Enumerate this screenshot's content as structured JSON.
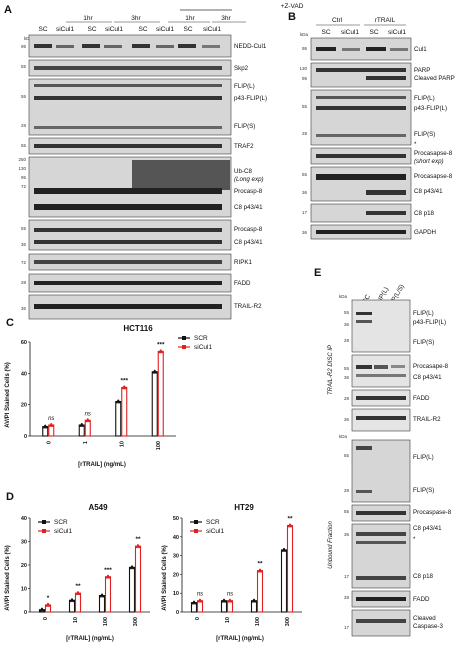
{
  "panel_labels": {
    "a": "A",
    "b": "B",
    "c": "C",
    "d": "D",
    "e": "E"
  },
  "unit": "kDa",
  "panelA": {
    "zvad": "+Z-VAD",
    "time_1hr": "1hr",
    "time_3hr": "3hr",
    "sc": "SC",
    "sicul1": "siCul1",
    "rows": [
      {
        "label": "NEDD-Cul1",
        "mw": "95"
      },
      {
        "label": "Skp2",
        "mw": "55"
      },
      {
        "label": "FLIP(L)",
        "mw": ""
      },
      {
        "label": "p43-FLIP(L)",
        "mw": "55"
      },
      {
        "label": "FLIP(S)",
        "mw": "28"
      },
      {
        "label": "TRAF2",
        "mw": "55"
      },
      {
        "label": "Ub-C8",
        "mw": "250"
      },
      {
        "label": "(Long exp)",
        "mw": "130"
      },
      {
        "label": "Procasp-8",
        "mw": "95"
      },
      {
        "label": "C8 p43/41",
        "mw": "72"
      },
      {
        "label": "Procasp-8",
        "mw": "55"
      },
      {
        "label": "C8 p43/41",
        "mw": "36"
      },
      {
        "label": "RIPK1",
        "mw": "72"
      },
      {
        "label": "FADD",
        "mw": "28"
      },
      {
        "label": "TRAIL-R2",
        "mw": "36"
      }
    ]
  },
  "panelB": {
    "ctrl": "Ctrl",
    "rtrail": "rTRAIL",
    "sc": "SC",
    "sicul1": "siCul1",
    "rows": [
      {
        "label": "Cul1",
        "mw": "95"
      },
      {
        "label": "PARP",
        "mw": "130"
      },
      {
        "label": "Cleaved PARP",
        "mw": "95"
      },
      {
        "label": "FLIP(L)",
        "mw": ""
      },
      {
        "label": "p43-FLIP(L)",
        "mw": "55"
      },
      {
        "label": "FLIP(S)",
        "mw": "28"
      },
      {
        "label": "Procasapse-8",
        "mw": ""
      },
      {
        "label": "(short exp)",
        "mw": ""
      },
      {
        "label": "Procasapse-8",
        "mw": "55"
      },
      {
        "label": "C8 p43/41",
        "mw": "36"
      },
      {
        "label": "C8 p18",
        "mw": "17"
      },
      {
        "label": "GAPDH",
        "mw": "36"
      },
      {
        "label": "*",
        "mw": ""
      }
    ]
  },
  "panelE": {
    "cols": [
      "SC",
      "siFLIP(L)",
      "siFLIP(L/S)"
    ],
    "side_top": "TRAIL-R2 DISC IP",
    "side_bottom": "Unbound Fraction",
    "top_rows": [
      {
        "label": "FLIP(L)",
        "mw": "55"
      },
      {
        "label": "p43-FLIP(L)",
        "mw": "36"
      },
      {
        "label": "FLIP(S)",
        "mw": "28"
      },
      {
        "label": "Procasape-8",
        "mw": "55"
      },
      {
        "label": "C8 p43/41",
        "mw": "36"
      },
      {
        "label": "FADD",
        "mw": "28"
      },
      {
        "label": "TRAIL-R2",
        "mw": "36"
      }
    ],
    "bottom_rows": [
      {
        "label": "FLIP(L)",
        "mw": "55"
      },
      {
        "label": "FLIP(S)",
        "mw": "28"
      },
      {
        "label": "Procaspase-8",
        "mw": "55"
      },
      {
        "label": "C8 p43/41",
        "mw": "36"
      },
      {
        "label": "*",
        "mw": ""
      },
      {
        "label": "C8 p18",
        "mw": "17"
      },
      {
        "label": "FADD",
        "mw": "28"
      },
      {
        "label": "Cleaved",
        "mw": ""
      },
      {
        "label": "Caspase-3",
        "mw": "17"
      }
    ]
  },
  "chart_data": [
    {
      "type": "bar",
      "title": "HCT116",
      "xlabel": "[rTRAIL] (ng/mL)",
      "ylabel": "AV/PI Stained Cells (%)",
      "categories": [
        "0",
        "1",
        "10",
        "100"
      ],
      "ylim": [
        0,
        60
      ],
      "yticks": [
        "0",
        "20",
        "40",
        "60"
      ],
      "series": [
        {
          "name": "SCR",
          "values": [
            6,
            7,
            22,
            41
          ],
          "color": "#111111"
        },
        {
          "name": "siCul1",
          "values": [
            7,
            10,
            31,
            54
          ],
          "color": "#e02020"
        }
      ],
      "annotations": [
        "ns",
        "ns",
        "***",
        "***"
      ]
    },
    {
      "type": "bar",
      "title": "A549",
      "xlabel": "[rTRAIL] (ng/mL)",
      "ylabel": "AV/PI Stained Cells (%)",
      "categories": [
        "0",
        "10",
        "100",
        "300"
      ],
      "ylim": [
        0,
        40
      ],
      "yticks": [
        "0",
        "10",
        "20",
        "30",
        "40"
      ],
      "series": [
        {
          "name": "SCR",
          "values": [
            1,
            5,
            7,
            19
          ],
          "color": "#111111"
        },
        {
          "name": "siCul1",
          "values": [
            3,
            8,
            15,
            28
          ],
          "color": "#e02020"
        }
      ],
      "annotations": [
        "*",
        "**",
        "***",
        "**"
      ]
    },
    {
      "type": "bar",
      "title": "HT29",
      "xlabel": "[rTRAIL] (ng/mL)",
      "ylabel": "AV/PI Stained Cells (%)",
      "categories": [
        "0",
        "10",
        "100",
        "300"
      ],
      "ylim": [
        0,
        50
      ],
      "yticks": [
        "0",
        "10",
        "20",
        "30",
        "40",
        "50"
      ],
      "series": [
        {
          "name": "SCR",
          "values": [
            5,
            6,
            6,
            33
          ],
          "color": "#111111"
        },
        {
          "name": "siCul1",
          "values": [
            6,
            6,
            22,
            46
          ],
          "color": "#e02020"
        }
      ],
      "annotations": [
        "ns",
        "ns",
        "**",
        "**"
      ]
    }
  ]
}
